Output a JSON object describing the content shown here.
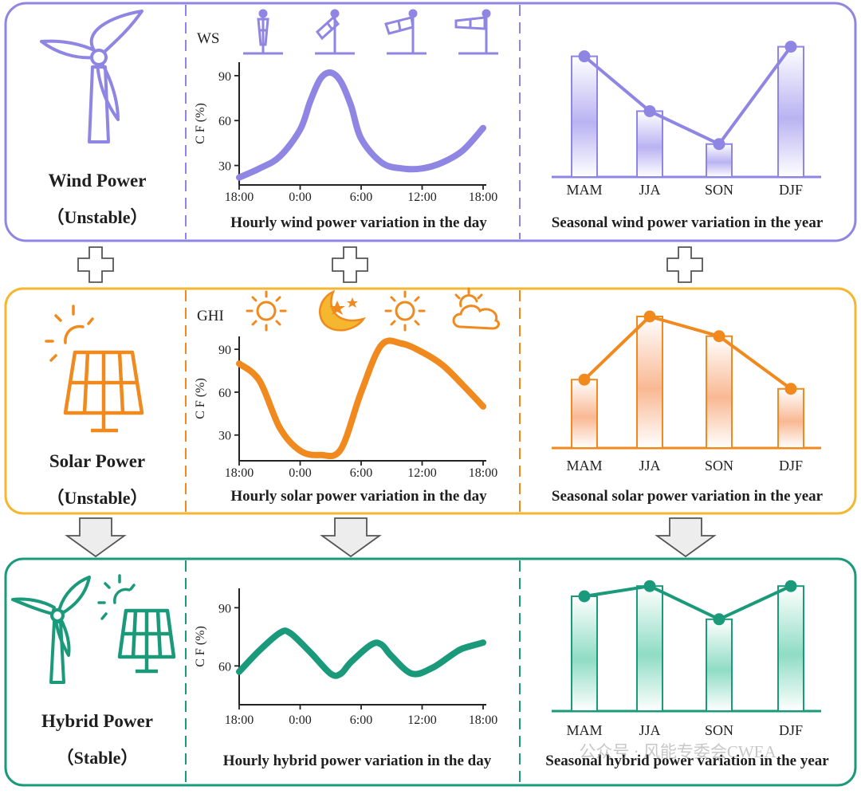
{
  "colors": {
    "wind": "#8f86e3",
    "wind_bar": "#c9c4f4",
    "solar": "#f08a1e",
    "solar_box": "#f5b630",
    "solar_bar": "#f9c3a1",
    "hybrid": "#1a9a7b",
    "hybrid_bar": "#a9e2d0",
    "connector": "#555555"
  },
  "rows": {
    "wind": {
      "title": "Wind Power",
      "status": "（Unstable）",
      "variable_label": "WS",
      "hourly_caption": "Hourly wind power variation in the day",
      "seasonal_caption": "Seasonal wind power variation in the year",
      "icons": [
        "wind-turbine-icon",
        "windsock-calm-icon",
        "windsock-light-icon",
        "windsock-medium-icon",
        "windsock-strong-icon"
      ]
    },
    "solar": {
      "title": "Solar Power",
      "status": "（Unstable）",
      "variable_label": "GHI",
      "hourly_caption": "Hourly solar power variation in the day",
      "seasonal_caption": "Seasonal solar power variation in the year",
      "icons": [
        "solar-panel-icon",
        "sun-icon",
        "moon-stars-icon",
        "sun-icon",
        "partly-cloudy-icon"
      ]
    },
    "hybrid": {
      "title": "Hybrid Power",
      "status": "（Stable）",
      "hourly_caption": "Hourly hybrid power variation in the day",
      "seasonal_caption": "Seasonal hybrid power variation in the year",
      "icons": [
        "wind-turbine-icon",
        "solar-panel-icon"
      ]
    }
  },
  "watermark": "公众号 · 风能专委会CWEA",
  "chart_data": [
    {
      "id": "wind-hourly",
      "type": "line",
      "ylabel": "C F (%)",
      "x_ticks": [
        "18:00",
        "0:00",
        "6:00",
        "12:00",
        "18:00"
      ],
      "x_range": [
        0,
        24
      ],
      "y_ticks": [
        30,
        60,
        90
      ],
      "ylim": [
        17,
        99
      ],
      "x": [
        0,
        2,
        4,
        6,
        7,
        8,
        9,
        10,
        11,
        12,
        14,
        16,
        18,
        20,
        22,
        24
      ],
      "y": [
        22,
        28,
        36,
        54,
        73,
        88,
        92,
        86,
        70,
        48,
        32,
        28,
        28,
        32,
        40,
        55
      ]
    },
    {
      "id": "wind-seasonal",
      "type": "bar",
      "categories": [
        "MAM",
        "JJA",
        "SON",
        "DJF"
      ],
      "values": [
        88,
        48,
        24,
        95
      ],
      "ylim": [
        0,
        100
      ]
    },
    {
      "id": "solar-hourly",
      "type": "line",
      "ylabel": "C F (%)",
      "x_ticks": [
        "18:00",
        "0:00",
        "6:00",
        "12:00",
        "18:00"
      ],
      "x_range": [
        0,
        24
      ],
      "y_ticks": [
        30,
        60,
        90
      ],
      "ylim": [
        12,
        99
      ],
      "x": [
        0,
        2,
        4,
        6,
        8,
        10,
        12,
        14,
        16,
        18,
        20,
        22,
        24
      ],
      "y": [
        80,
        68,
        35,
        19,
        16,
        20,
        60,
        93,
        94,
        88,
        79,
        65,
        50
      ],
      "x_spaced": false
    },
    {
      "id": "solar-seasonal",
      "type": "bar",
      "categories": [
        "MAM",
        "JJA",
        "SON",
        "DJF"
      ],
      "values": [
        52,
        100,
        85,
        45
      ],
      "ylim": [
        0,
        100
      ]
    },
    {
      "id": "hybrid-hourly",
      "type": "line",
      "ylabel": "C F (%)",
      "x_ticks": [
        "18:00",
        "0:00",
        "6:00",
        "12:00",
        "18:00"
      ],
      "x_range": [
        0,
        24
      ],
      "y_ticks": [
        60,
        90
      ],
      "ylim": [
        40,
        100
      ],
      "x": [
        0,
        2,
        4,
        5,
        7,
        9,
        10,
        11,
        13,
        14,
        15,
        17,
        19,
        21,
        22,
        24
      ],
      "y": [
        57,
        68,
        77,
        77,
        67,
        56,
        56,
        62,
        71,
        71,
        65,
        56,
        59,
        66,
        69,
        72
      ]
    },
    {
      "id": "hybrid-seasonal",
      "type": "bar",
      "categories": [
        "MAM",
        "JJA",
        "SON",
        "DJF"
      ],
      "values": [
        90,
        98,
        72,
        98
      ],
      "ylim": [
        0,
        100
      ]
    }
  ]
}
